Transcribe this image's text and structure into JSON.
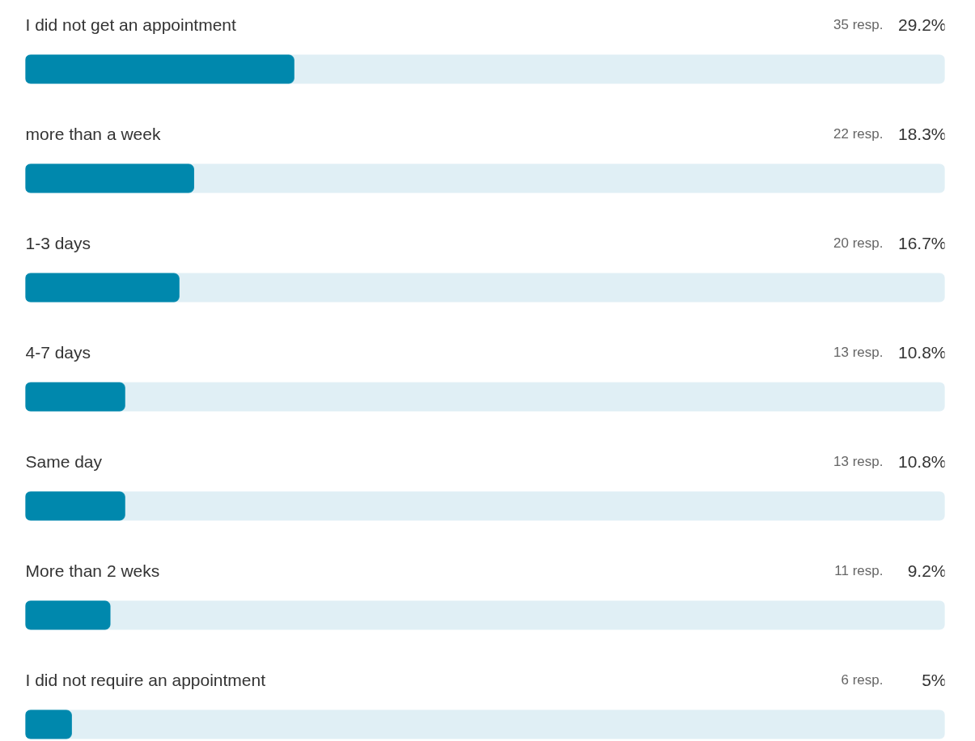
{
  "chart_data": {
    "type": "bar",
    "orientation": "horizontal",
    "categories": [
      "I did not get an appointment",
      "more than a week",
      "1-3 days",
      "4-7 days",
      "Same day",
      "More than 2 weks",
      "I did not require an appointment"
    ],
    "values": [
      29.2,
      18.3,
      16.7,
      10.8,
      10.8,
      9.2,
      5
    ],
    "value_labels": [
      "29.2%",
      "18.3%",
      "16.7%",
      "10.8%",
      "10.8%",
      "9.2%",
      "5%"
    ],
    "color": "#0088ad",
    "xlim": [
      0,
      100
    ],
    "grid": false,
    "annotations": [
      "35 resp.",
      "22 resp.",
      "20 resp.",
      "13 resp.",
      "13 resp.",
      "11 resp.",
      "6 resp."
    ]
  }
}
